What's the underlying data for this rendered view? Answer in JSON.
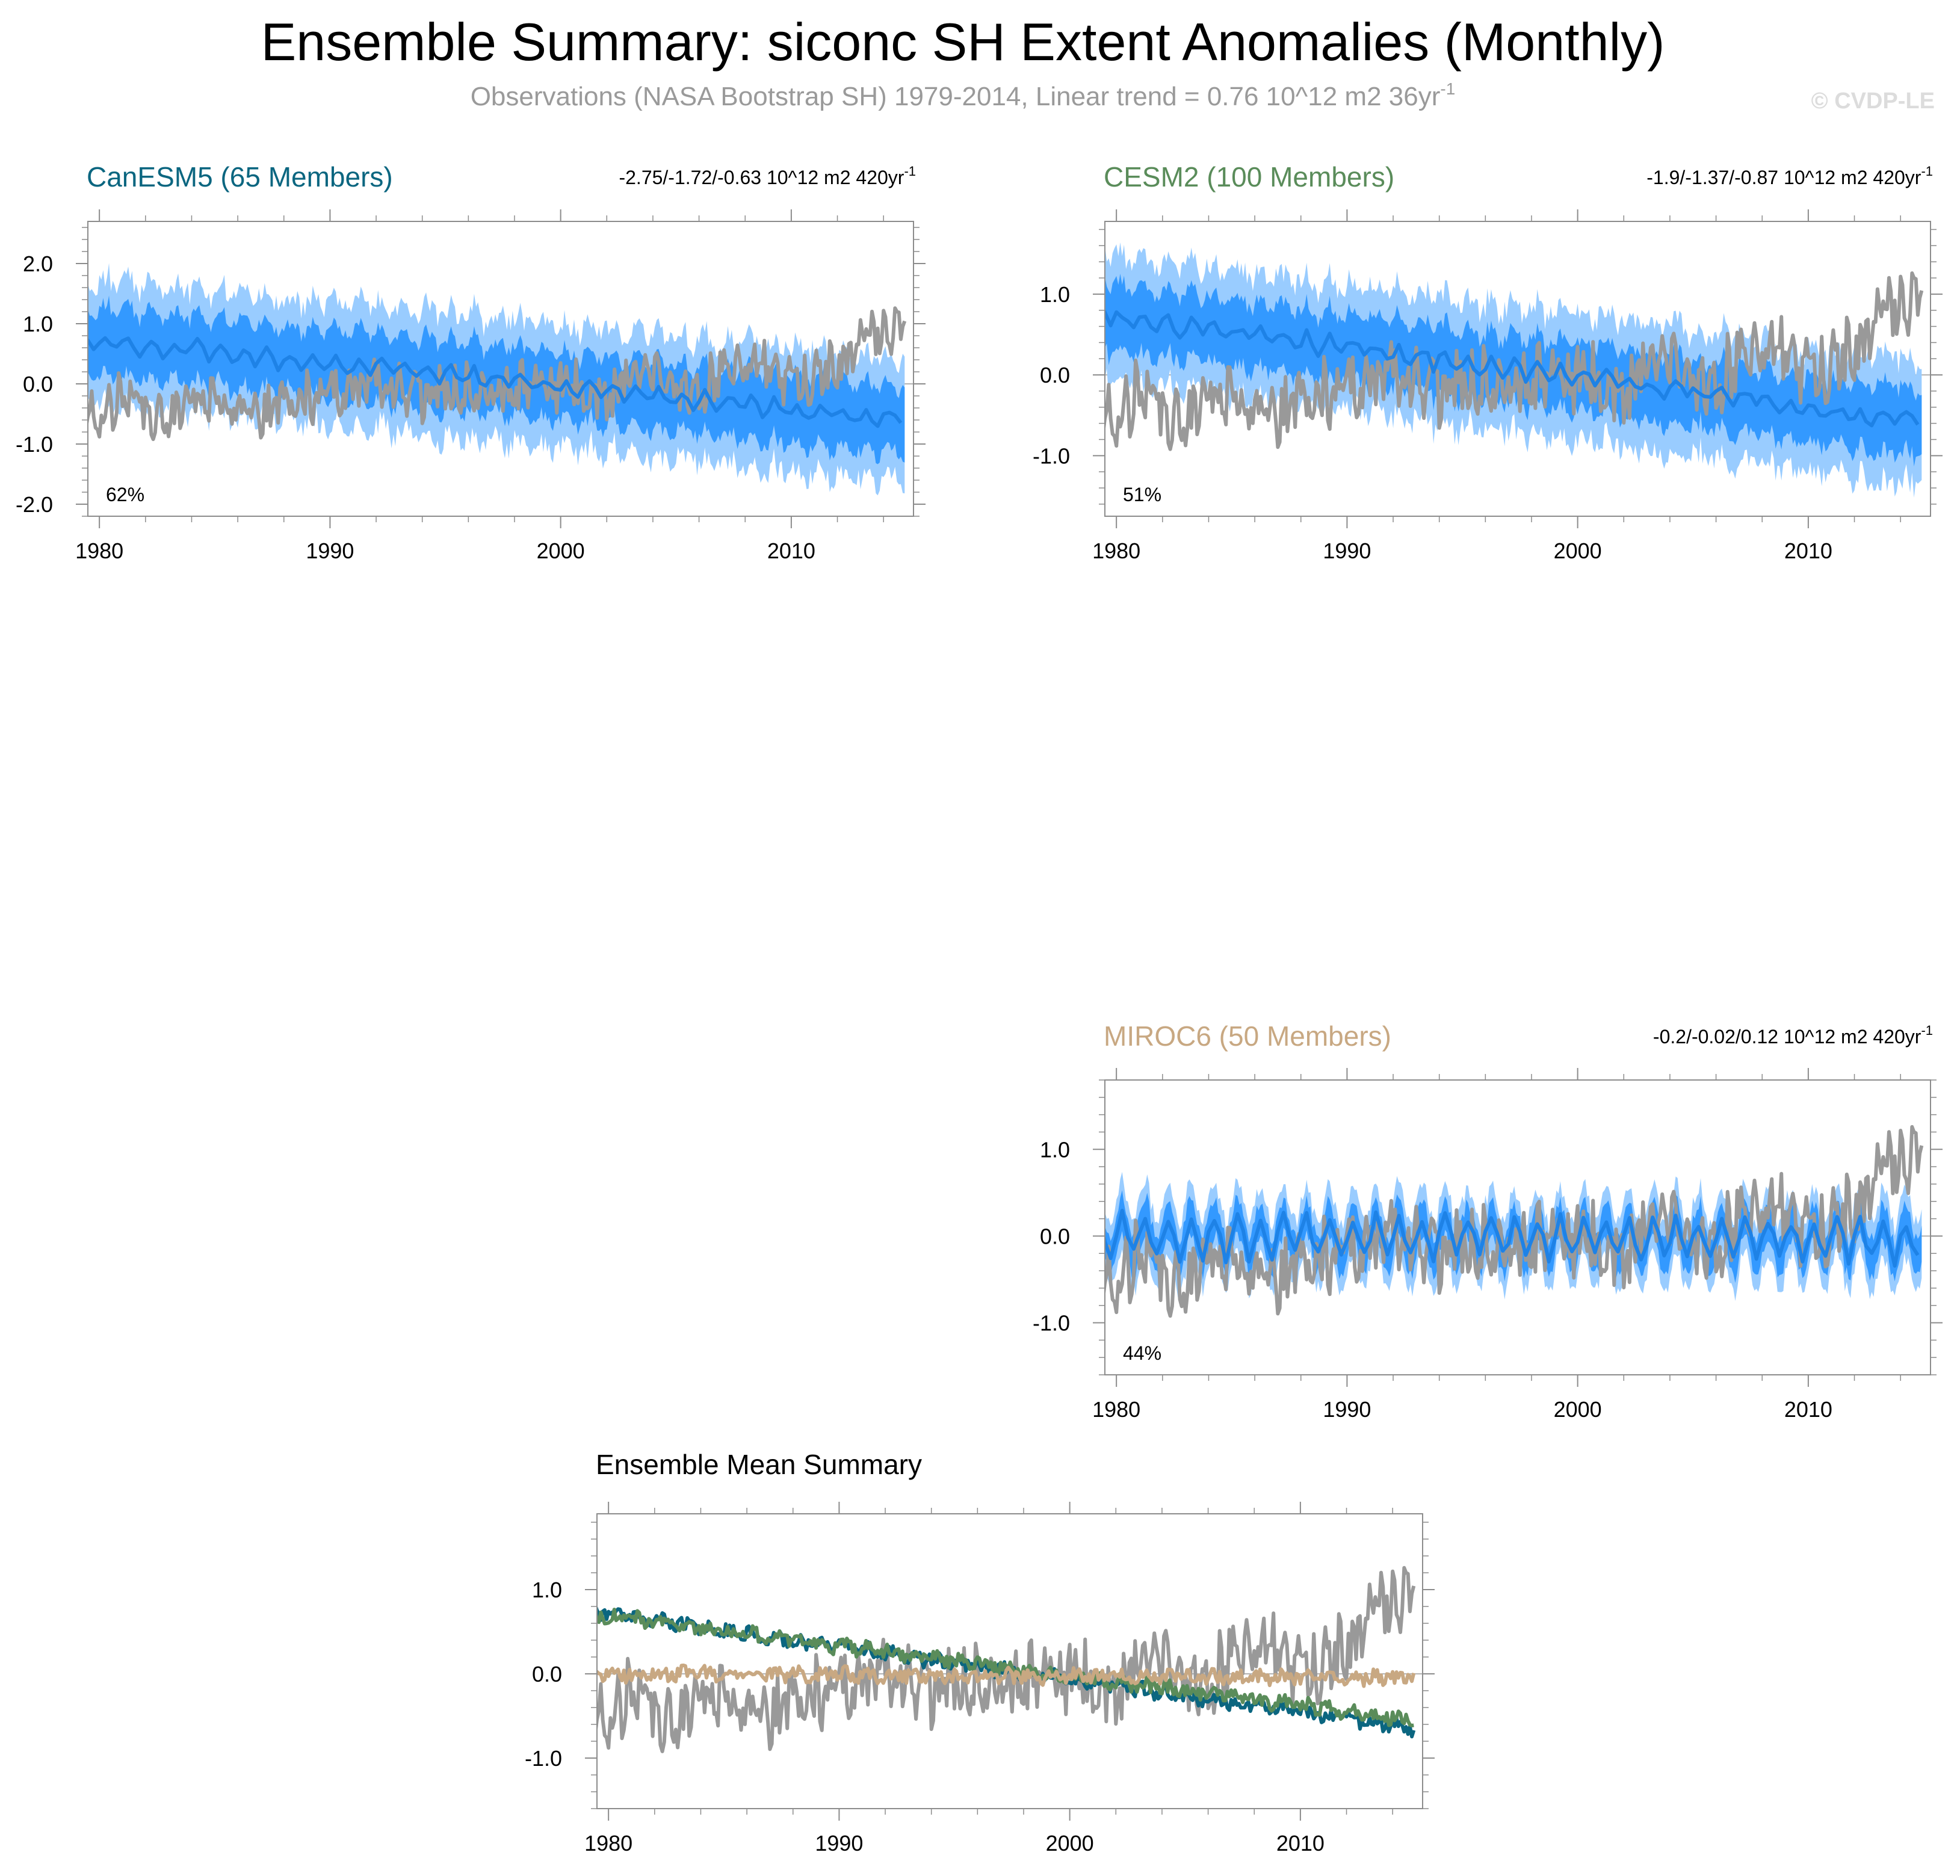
{
  "title": "Ensemble Summary: siconc SH Extent Anomalies (Monthly)",
  "subtitle": {
    "text": "Observations (NASA Bootstrap SH) 1979-2014, Linear trend = 0.76 10^12 m2 36yr",
    "superscript": "-1"
  },
  "credit": "© CVDP-LE",
  "colors": {
    "observations": "#999999",
    "spread_outer": "#99ccff",
    "spread_inner": "#3399ff",
    "ensemble_mean": "#1e82e6",
    "CanESM5": "#0b6680",
    "CESM2": "#5a8c5a",
    "MIROC6": "#c8a882"
  },
  "chart_data": [
    {
      "type": "area",
      "panel": "CanESM5",
      "title": "CanESM5 (65 Members)",
      "title_color": "#0b6680",
      "trend_text": "-2.75/-1.72/-0.63 10^12 m2 420yr",
      "trend_superscript": "-1",
      "percent_label": "62%",
      "x_range": [
        1979.5,
        2015.3
      ],
      "y_range": [
        -2.2,
        2.7
      ],
      "x_ticks": [
        1980,
        1990,
        2000,
        2010
      ],
      "x_tick_labels": [
        "1980",
        "1990",
        "2000",
        "2010"
      ],
      "y_ticks": [
        -2,
        -1,
        0,
        1,
        2
      ],
      "y_tick_labels": [
        "-2.0",
        "-1.0",
        "0.0",
        "1.0",
        "2.0"
      ],
      "mean_start": 0.75,
      "mean_end": -0.6,
      "inner_halfwidth": 0.55,
      "outer_halfwidth": 1.0,
      "seasonal_amplitude": 0.12,
      "series": [
        "observations",
        "ensemble_mean",
        "spread_inner",
        "spread_outer"
      ]
    },
    {
      "type": "area",
      "panel": "CESM2",
      "title": "CESM2 (100 Members)",
      "title_color": "#5a8c5a",
      "trend_text": "-1.9/-1.37/-0.87 10^12 m2 420yr",
      "trend_superscript": "-1",
      "percent_label": "51%",
      "x_range": [
        1979.5,
        2015.3
      ],
      "y_range": [
        -1.75,
        1.9
      ],
      "x_ticks": [
        1980,
        1990,
        2000,
        2010
      ],
      "x_tick_labels": [
        "1980",
        "1990",
        "2000",
        "2010"
      ],
      "y_ticks": [
        -1,
        0,
        1
      ],
      "y_tick_labels": [
        "-1.0",
        "0.0",
        "1.0"
      ],
      "mean_start": 0.75,
      "mean_end": -0.6,
      "inner_halfwidth": 0.4,
      "outer_halfwidth": 0.75,
      "seasonal_amplitude": 0.08,
      "series": [
        "observations",
        "ensemble_mean",
        "spread_inner",
        "spread_outer"
      ]
    },
    {
      "type": "area",
      "panel": "MIROC6",
      "title": "MIROC6 (50 Members)",
      "title_color": "#c8a882",
      "trend_text": "-0.2/-0.02/0.12 10^12 m2 420yr",
      "trend_superscript": "-1",
      "percent_label": "44%",
      "x_range": [
        1979.5,
        2015.3
      ],
      "y_range": [
        -1.6,
        1.8
      ],
      "x_ticks": [
        1980,
        1990,
        2000,
        2010
      ],
      "x_tick_labels": [
        "1980",
        "1990",
        "2000",
        "2010"
      ],
      "y_ticks": [
        -1,
        0,
        1
      ],
      "y_tick_labels": [
        "-1.0",
        "0.0",
        "1.0"
      ],
      "mean_start": 0.0,
      "mean_end": -0.05,
      "inner_halfwidth": 0.2,
      "outer_halfwidth": 0.38,
      "seasonal_amplitude": 0.22,
      "series": [
        "observations",
        "ensemble_mean",
        "spread_inner",
        "spread_outer"
      ]
    },
    {
      "type": "line",
      "panel": "Ensemble Mean Summary",
      "title": "Ensemble Mean Summary",
      "title_color": "#000000",
      "x_range": [
        1979.5,
        2015.3
      ],
      "y_range": [
        -1.6,
        1.9
      ],
      "x_ticks": [
        1980,
        1990,
        2000,
        2010
      ],
      "x_tick_labels": [
        "1980",
        "1990",
        "2000",
        "2010"
      ],
      "y_ticks": [
        -1,
        0,
        1
      ],
      "y_tick_labels": [
        "-1.0",
        "0.0",
        "1.0"
      ],
      "series": [
        {
          "name": "Observations",
          "color": "#999999"
        },
        {
          "name": "CanESM5",
          "color": "#0b6680",
          "start": 0.75,
          "end": -0.65
        },
        {
          "name": "CESM2",
          "color": "#5a8c5a",
          "start": 0.72,
          "end": -0.55
        },
        {
          "name": "MIROC6",
          "color": "#c8a882",
          "start": 0.0,
          "end": -0.05
        }
      ]
    }
  ],
  "observations": {
    "name": "NASA Bootstrap SH",
    "years": [
      1979,
      2014
    ],
    "annual_mean": [
      -0.35,
      -0.6,
      -0.15,
      -0.45,
      -0.5,
      -0.2,
      -0.3,
      -0.55,
      -0.4,
      -0.3,
      -0.25,
      -0.2,
      -0.15,
      0.05,
      -0.05,
      -0.2,
      -0.1,
      0.0,
      -0.25,
      0.0,
      0.0,
      -0.05,
      -0.1,
      -0.3,
      0.15,
      0.1,
      -0.05,
      -0.2,
      0.25,
      0.45,
      0.2,
      0.0,
      0.1,
      0.35,
      0.65,
      0.9
    ]
  }
}
